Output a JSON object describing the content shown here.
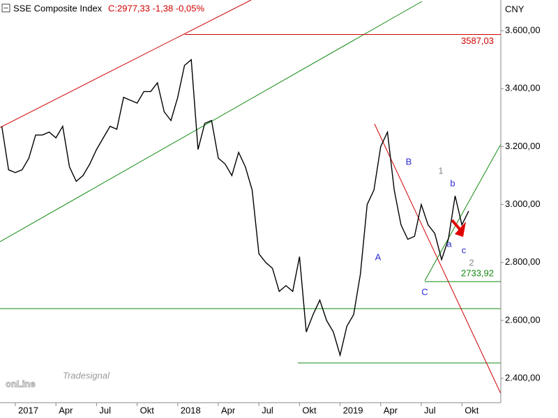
{
  "chart_data": {
    "type": "line",
    "title": "SSE Composite Index",
    "subtitle": "C:2977,33 -1,38 -0,05%",
    "y_label": "CNY",
    "logo": "onLine",
    "logo_sub": "Tradesignal",
    "categories": [
      null,
      null,
      "2017",
      null,
      null,
      null,
      null,
      null,
      "Apr",
      null,
      null,
      null,
      null,
      null,
      "Jul",
      null,
      null,
      null,
      null,
      null,
      "Okt",
      null,
      null,
      null,
      null,
      null,
      "2018",
      null,
      null,
      null,
      null,
      null,
      "Apr",
      null,
      null,
      null,
      null,
      null,
      "Jul",
      null,
      null,
      null,
      null,
      null,
      "Okt",
      null,
      null,
      null,
      null,
      null,
      "2019",
      null,
      null,
      null,
      null,
      null,
      "Apr",
      null,
      null,
      null,
      null,
      null,
      "Jul",
      null,
      null,
      null,
      null,
      null,
      "Okt",
      null
    ],
    "series": [
      {
        "name": "SSE Composite Index",
        "color": "#000000",
        "values": [
          3270,
          3120,
          3110,
          3120,
          3160,
          3240,
          3240,
          3250,
          3230,
          3270,
          3130,
          3080,
          3100,
          3140,
          3190,
          3230,
          3270,
          3260,
          3370,
          3360,
          3350,
          3390,
          3390,
          3420,
          3320,
          3290,
          3370,
          3480,
          3500,
          3190,
          3280,
          3290,
          3160,
          3140,
          3100,
          3180,
          3130,
          3050,
          2830,
          2800,
          2780,
          2700,
          2720,
          2700,
          2820,
          2560,
          2620,
          2670,
          2600,
          2560,
          2480,
          2580,
          2620,
          2760,
          3000,
          3050,
          3200,
          3250,
          3050,
          2930,
          2880,
          2890,
          3000,
          2930,
          2900,
          2810,
          2880,
          3030,
          2930,
          2977
        ]
      }
    ],
    "ylim": [
      2316,
      3706
    ],
    "yticks": [
      {
        "value": 2400,
        "label": "2.400,00"
      },
      {
        "value": 2600,
        "label": "2.600,00"
      },
      {
        "value": 2800,
        "label": "2.800,00"
      },
      {
        "value": 3000,
        "label": "3.000,00"
      },
      {
        "value": 3200,
        "label": "3.200,00"
      },
      {
        "value": 3400,
        "label": "3.400,00"
      },
      {
        "value": 3600,
        "label": "3.600,00"
      }
    ],
    "levels": [
      {
        "value": 3587.03,
        "label": "3587,03",
        "color": "#d00000"
      },
      {
        "value": 2733.92,
        "label": "2733,92",
        "color": "#138a13"
      }
    ],
    "annotations": [
      "A",
      "B",
      "C",
      "1",
      "2",
      "a",
      "b",
      "c"
    ]
  }
}
